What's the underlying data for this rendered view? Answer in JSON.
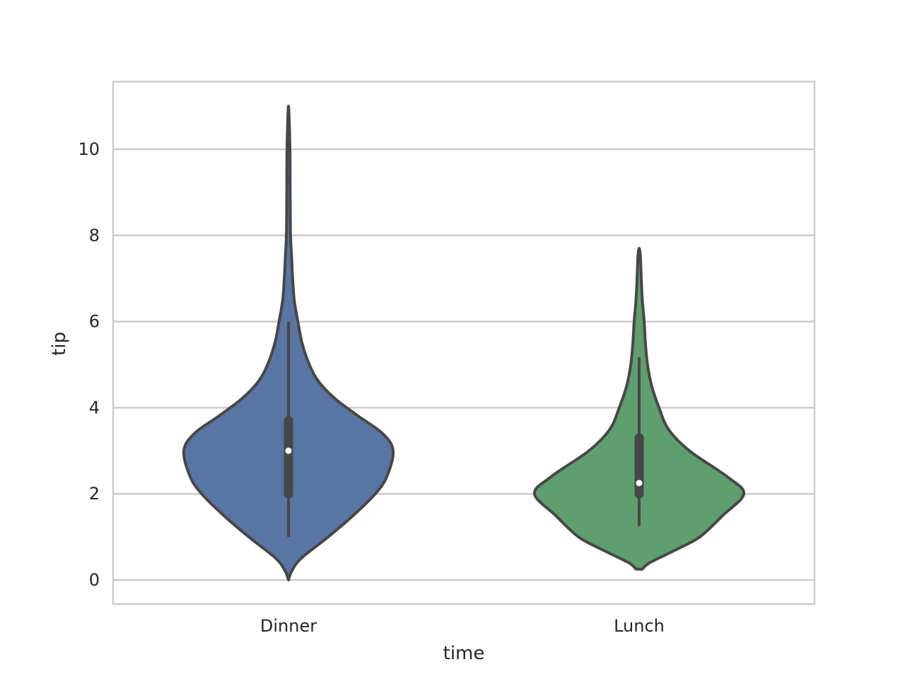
{
  "chart_data": {
    "type": "violin",
    "xlabel": "time",
    "ylabel": "tip",
    "ylim": [
      -0.55,
      11.55
    ],
    "yticks": [
      0,
      2,
      4,
      6,
      8,
      10
    ],
    "grid": "horizontal",
    "categories": [
      "Dinner",
      "Lunch"
    ],
    "colors": {
      "Dinner": "#5875a4",
      "Lunch": "#5f9e6e",
      "outline": "#474747",
      "grid": "#cccccc",
      "frame": "#cccccc",
      "median_dot": "#ffffff"
    },
    "series": [
      {
        "category": "Dinner",
        "min": 1.0,
        "q1": 2.0,
        "median": 3.0,
        "q3": 3.7,
        "whisker_low": 1.0,
        "whisker_high": 6.0,
        "kde_range": [
          0.0,
          11.0
        ],
        "density_profile": [
          [
            0.0,
            0.0
          ],
          [
            0.2,
            0.03
          ],
          [
            0.5,
            0.12
          ],
          [
            1.0,
            0.38
          ],
          [
            1.5,
            0.62
          ],
          [
            2.0,
            0.83
          ],
          [
            2.4,
            0.94
          ],
          [
            3.0,
            1.0
          ],
          [
            3.4,
            0.9
          ],
          [
            3.8,
            0.67
          ],
          [
            4.2,
            0.45
          ],
          [
            4.6,
            0.29
          ],
          [
            5.0,
            0.2
          ],
          [
            5.5,
            0.13
          ],
          [
            6.0,
            0.09
          ],
          [
            6.5,
            0.055
          ],
          [
            7.0,
            0.04
          ],
          [
            7.5,
            0.03
          ],
          [
            8.0,
            0.02
          ],
          [
            9.0,
            0.016
          ],
          [
            10.0,
            0.014
          ],
          [
            11.0,
            0.0
          ]
        ]
      },
      {
        "category": "Lunch",
        "min": 1.25,
        "q1": 2.0,
        "median": 2.25,
        "q3": 3.3,
        "whisker_low": 1.25,
        "whisker_high": 5.17,
        "kde_range": [
          0.25,
          7.7
        ],
        "density_profile": [
          [
            0.25,
            0.03
          ],
          [
            0.4,
            0.1
          ],
          [
            0.7,
            0.35
          ],
          [
            1.0,
            0.58
          ],
          [
            1.5,
            0.8
          ],
          [
            2.0,
            1.0
          ],
          [
            2.4,
            0.84
          ],
          [
            3.0,
            0.48
          ],
          [
            3.5,
            0.28
          ],
          [
            4.0,
            0.19
          ],
          [
            4.5,
            0.12
          ],
          [
            5.0,
            0.08
          ],
          [
            5.5,
            0.06
          ],
          [
            6.0,
            0.048
          ],
          [
            6.5,
            0.03
          ],
          [
            7.0,
            0.02
          ],
          [
            7.5,
            0.012
          ],
          [
            7.7,
            0.0
          ]
        ]
      }
    ]
  }
}
